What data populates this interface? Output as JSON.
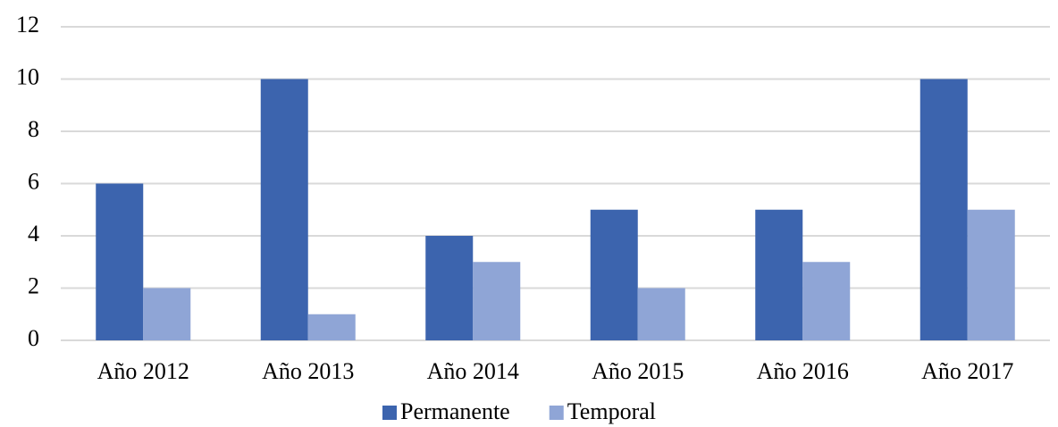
{
  "chart_data": {
    "type": "bar",
    "categories": [
      "Año 2012",
      "Año 2013",
      "Año 2014",
      "Año 2015",
      "Año 2016",
      "Año 2017"
    ],
    "series": [
      {
        "name": "Permanente",
        "color": "#3c64ae",
        "values": [
          6,
          10,
          4,
          5,
          5,
          10
        ]
      },
      {
        "name": "Temporal",
        "color": "#8fa5d6",
        "values": [
          2,
          1,
          3,
          2,
          3,
          5
        ]
      }
    ],
    "ylim": [
      0,
      12
    ],
    "yticks": [
      0,
      2,
      4,
      6,
      8,
      10,
      12
    ],
    "grid": true,
    "legend": "bottom"
  }
}
